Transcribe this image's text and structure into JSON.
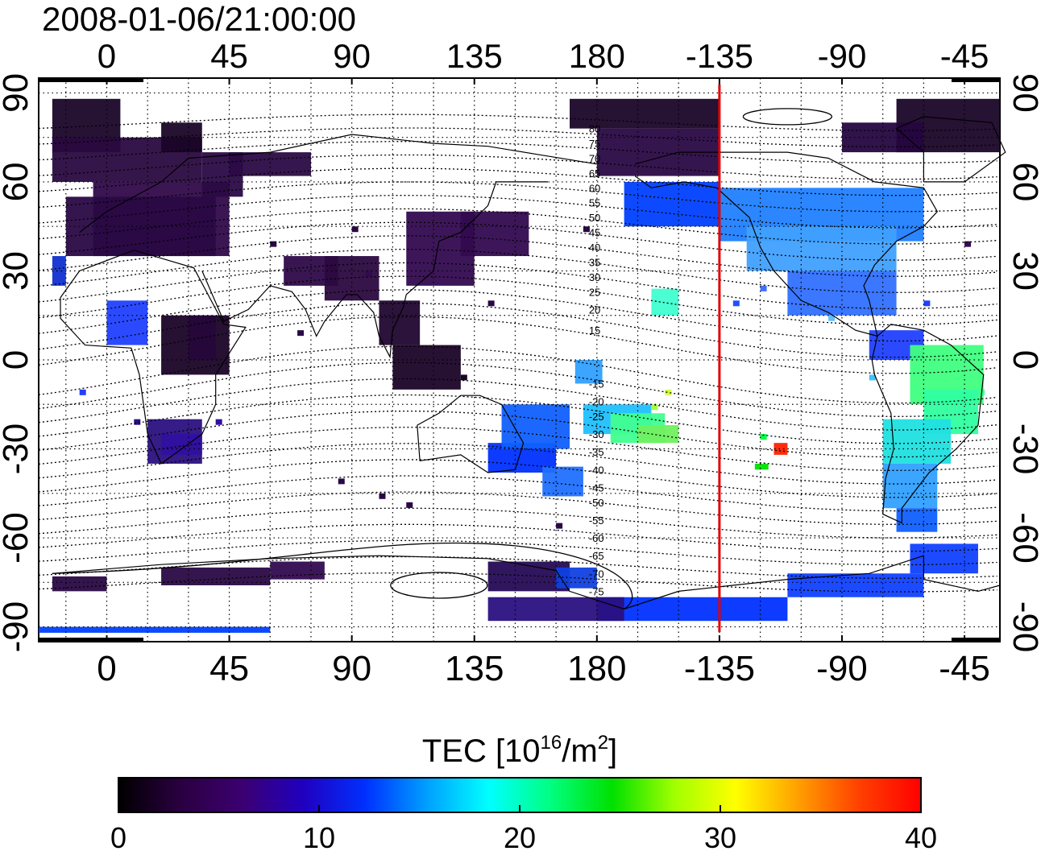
{
  "timestamp": "2008-01-06/21:00:00",
  "map": {
    "lon_range": [
      -25,
      328
    ],
    "lat_range": [
      -95,
      95
    ],
    "top_lon_ticks": [
      "0",
      "45",
      "90",
      "135",
      "180",
      "-135",
      "-90",
      "-45"
    ],
    "bottom_lon_ticks": [
      "0",
      "45",
      "90",
      "135",
      "180",
      "-135",
      "-90",
      "-45"
    ],
    "lat_ticks": [
      "90",
      "60",
      "30",
      "0",
      "-30",
      "-60",
      "-90"
    ],
    "lon_tick_values": [
      0,
      45,
      90,
      135,
      180,
      225,
      270,
      315
    ],
    "lat_tick_values": [
      90,
      60,
      30,
      0,
      -30,
      -60,
      -90
    ],
    "terminator_lon": 225,
    "terminator_color": "#e00000",
    "contour_labels": [
      "80",
      "75",
      "70",
      "65",
      "60",
      "55",
      "50",
      "45",
      "40",
      "35",
      "30",
      "25",
      "20",
      "15",
      "-15",
      "-20",
      "-25",
      "-30",
      "-35",
      "-40",
      "-45",
      "-50",
      "-55",
      "-60",
      "-65",
      "-70",
      "-75"
    ]
  },
  "colorbar": {
    "title": "TEC  [10",
    "title_sup1": "16",
    "title_mid": "/m",
    "title_sup2": "2",
    "title_end": "]",
    "min": 0,
    "max": 40,
    "tick_labels": [
      "0",
      "10",
      "20",
      "30",
      "40"
    ],
    "tick_values": [
      0,
      10,
      20,
      30,
      40
    ],
    "stops": [
      "#000000",
      "#2a0040",
      "#3b0070",
      "#2000c0",
      "#0030ff",
      "#00a0ff",
      "#00ffff",
      "#00ff80",
      "#00e000",
      "#a0ff00",
      "#ffff00",
      "#ffa000",
      "#ff4000",
      "#ff0000"
    ]
  }
}
